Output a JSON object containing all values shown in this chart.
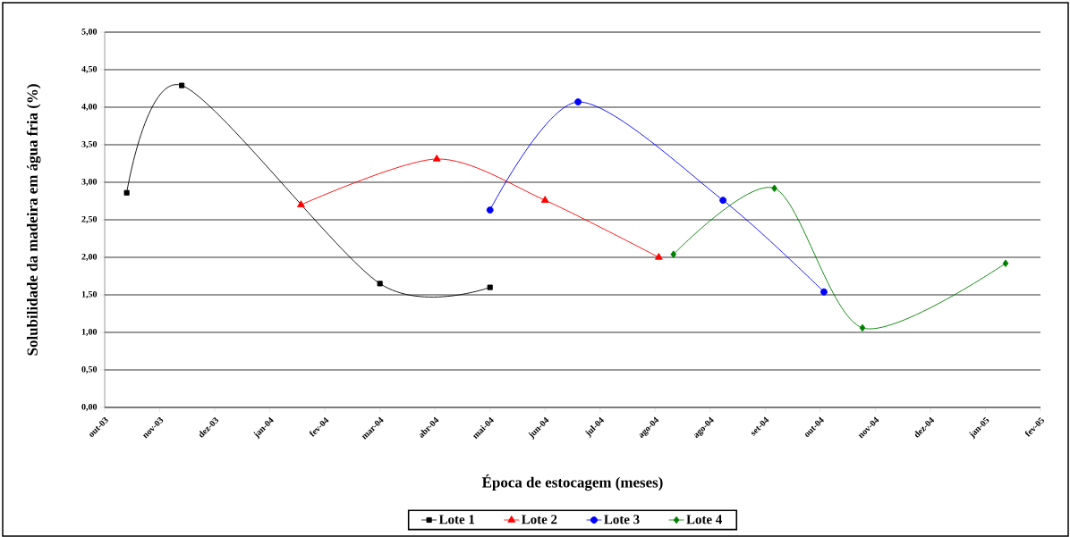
{
  "chart_data": {
    "type": "line",
    "xlabel": "Época de estocagem (meses)",
    "ylabel": "Solubilidade da madeira em água fria (%)",
    "xlim": [
      "2003-10-06",
      "2005-02-27"
    ],
    "xticks": [
      {
        "value": "2003-10-06",
        "label": "out-03"
      },
      {
        "value": "2003-11-05",
        "label": "nov-03"
      },
      {
        "value": "2003-12-05",
        "label": "dez-03"
      },
      {
        "value": "2004-01-04",
        "label": "jan-04"
      },
      {
        "value": "2004-02-03",
        "label": "fev-04"
      },
      {
        "value": "2004-03-04",
        "label": "mar-04"
      },
      {
        "value": "2004-04-03",
        "label": "abr-04"
      },
      {
        "value": "2004-05-03",
        "label": "mai-04"
      },
      {
        "value": "2004-06-02",
        "label": "jun-04"
      },
      {
        "value": "2004-07-02",
        "label": "jul-04"
      },
      {
        "value": "2004-08-01",
        "label": "ago-04"
      },
      {
        "value": "2004-08-31",
        "label": "ago-04"
      },
      {
        "value": "2004-09-30",
        "label": "set-04"
      },
      {
        "value": "2004-10-30",
        "label": "out-04"
      },
      {
        "value": "2004-11-29",
        "label": "nov-04"
      },
      {
        "value": "2004-12-29",
        "label": "dez-04"
      },
      {
        "value": "2005-01-28",
        "label": "jan-05"
      },
      {
        "value": "2005-02-27",
        "label": "fev-05"
      }
    ],
    "ylim": [
      0,
      5
    ],
    "yticks": [
      {
        "value": 0,
        "label": "0,00"
      },
      {
        "value": 0.5,
        "label": "0,50"
      },
      {
        "value": 1,
        "label": "1,00"
      },
      {
        "value": 1.5,
        "label": "1,50"
      },
      {
        "value": 2,
        "label": "2,00"
      },
      {
        "value": 2.5,
        "label": "2,50"
      },
      {
        "value": 3,
        "label": "3,00"
      },
      {
        "value": 3.5,
        "label": "3,50"
      },
      {
        "value": 4,
        "label": "4,00"
      },
      {
        "value": 4.5,
        "label": "4,50"
      },
      {
        "value": 5,
        "label": "5,00"
      }
    ],
    "grid": "y",
    "legend": "bottom",
    "series": [
      {
        "name": "Lote 1",
        "color": "#000000",
        "marker": "square",
        "x": [
          "2003-10-18",
          "2003-11-17",
          "2004-03-04",
          "2004-05-03"
        ],
        "values": [
          2.86,
          4.29,
          1.65,
          1.6
        ]
      },
      {
        "name": "Lote 2",
        "color": "#ff0000",
        "marker": "triangle",
        "x": [
          "2004-01-21",
          "2004-04-04",
          "2004-06-02",
          "2004-08-03"
        ],
        "values": [
          2.7,
          3.31,
          2.76,
          2.0
        ]
      },
      {
        "name": "Lote 3",
        "color": "#0000ff",
        "marker": "circle",
        "x": [
          "2004-05-03",
          "2004-06-20",
          "2004-09-07",
          "2004-11-01"
        ],
        "values": [
          2.63,
          4.07,
          2.76,
          1.54
        ]
      },
      {
        "name": "Lote 4",
        "color": "#008000",
        "marker": "diamond",
        "x": [
          "2004-08-11",
          "2004-10-05",
          "2004-11-22",
          "2005-02-08"
        ],
        "values": [
          2.04,
          2.92,
          1.06,
          1.92
        ]
      }
    ]
  }
}
